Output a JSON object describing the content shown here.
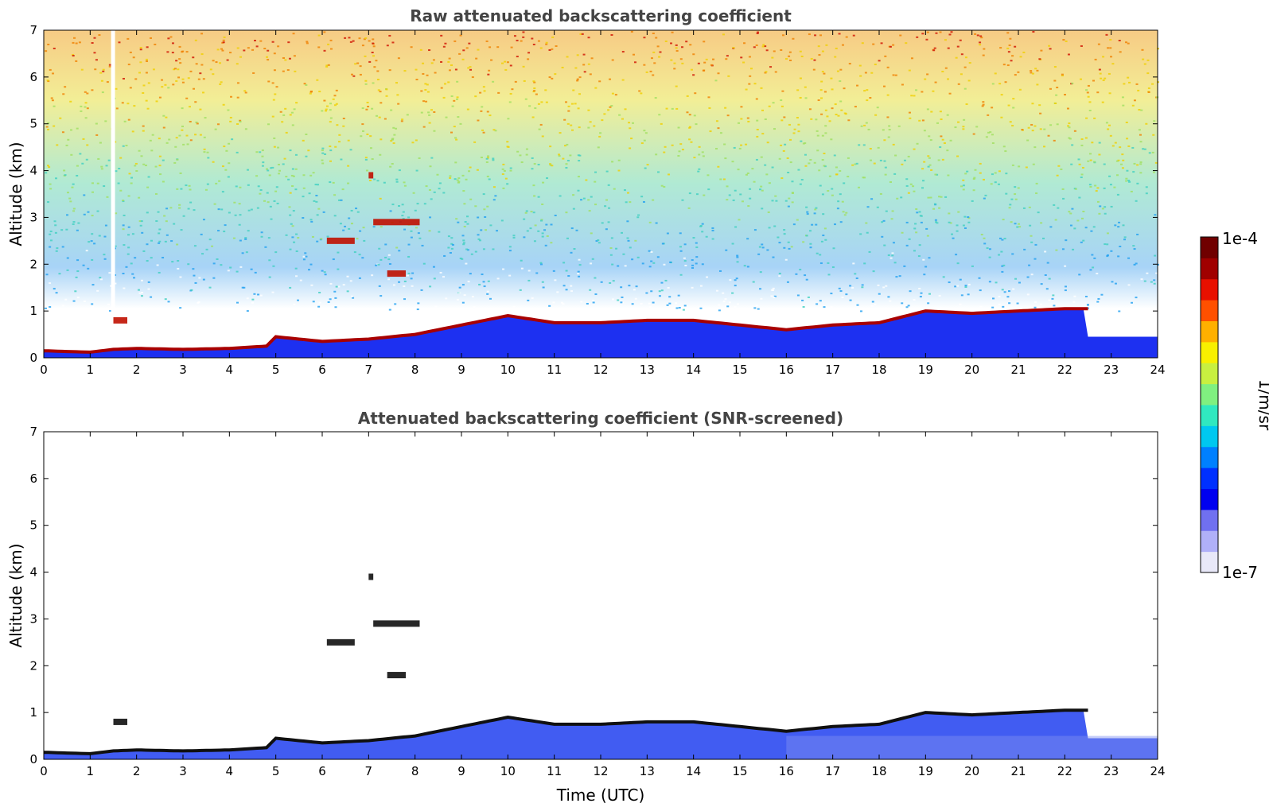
{
  "chart_data": [
    {
      "type": "heatmap",
      "title": "Raw attenuated backscattering coefficient",
      "xlabel": "",
      "ylabel": "Altitude (km)",
      "xlim": [
        0,
        24
      ],
      "ylim": [
        0,
        7
      ],
      "xticks": [
        "0",
        "1",
        "2",
        "3",
        "4",
        "5",
        "6",
        "7",
        "8",
        "9",
        "10",
        "11",
        "12",
        "13",
        "14",
        "15",
        "16",
        "17",
        "18",
        "19",
        "20",
        "21",
        "22",
        "23",
        "24"
      ],
      "yticks": [
        "0",
        "1",
        "2",
        "3",
        "4",
        "5",
        "6",
        "7"
      ],
      "grid": false,
      "pbl_top_km": [
        [
          0,
          0.15
        ],
        [
          1,
          0.12
        ],
        [
          1.5,
          0.18
        ],
        [
          2,
          0.2
        ],
        [
          3,
          0.18
        ],
        [
          4,
          0.2
        ],
        [
          4.8,
          0.25
        ],
        [
          5,
          0.45
        ],
        [
          6,
          0.35
        ],
        [
          7,
          0.4
        ],
        [
          8,
          0.5
        ],
        [
          9,
          0.7
        ],
        [
          10,
          0.9
        ],
        [
          11,
          0.75
        ],
        [
          12,
          0.75
        ],
        [
          13,
          0.8
        ],
        [
          14,
          0.8
        ],
        [
          15,
          0.7
        ],
        [
          16,
          0.6
        ],
        [
          17,
          0.7
        ],
        [
          18,
          0.75
        ],
        [
          19,
          1.0
        ],
        [
          20,
          0.95
        ],
        [
          21,
          1.0
        ],
        [
          22,
          1.05
        ],
        [
          22.5,
          1.05
        ]
      ],
      "cloud_features": [
        {
          "x": [
            6.1,
            6.7
          ],
          "y": 2.5
        },
        {
          "x": [
            7.0,
            7.1
          ],
          "y": 3.9
        },
        {
          "x": [
            7.1,
            8.1
          ],
          "y": 2.9
        },
        {
          "x": [
            7.4,
            7.8
          ],
          "y": 1.8
        },
        {
          "x": [
            1.5,
            1.8
          ],
          "y": 0.8
        }
      ]
    },
    {
      "type": "heatmap",
      "title": "Attenuated backscattering coefficient (SNR-screened)",
      "xlabel": "Time (UTC)",
      "ylabel": "Altitude (km)",
      "xlim": [
        0,
        24
      ],
      "ylim": [
        0,
        7
      ],
      "xticks": [
        "0",
        "1",
        "2",
        "3",
        "4",
        "5",
        "6",
        "7",
        "8",
        "9",
        "10",
        "11",
        "12",
        "13",
        "14",
        "15",
        "16",
        "17",
        "18",
        "19",
        "20",
        "21",
        "22",
        "23",
        "24"
      ],
      "yticks": [
        "0",
        "1",
        "2",
        "3",
        "4",
        "5",
        "6",
        "7"
      ],
      "grid": false
    }
  ],
  "colorbar": {
    "label": "1/m/sr",
    "max_label": "1e-4",
    "min_label": "1e-7",
    "colors": [
      "#e8e8f8",
      "#b0b0f8",
      "#7070f0",
      "#0000f0",
      "#0030ff",
      "#0080ff",
      "#00c8f0",
      "#30e8c0",
      "#80f080",
      "#c8f040",
      "#f8f000",
      "#ffb000",
      "#ff5000",
      "#e81000",
      "#a00000",
      "#700000"
    ]
  }
}
